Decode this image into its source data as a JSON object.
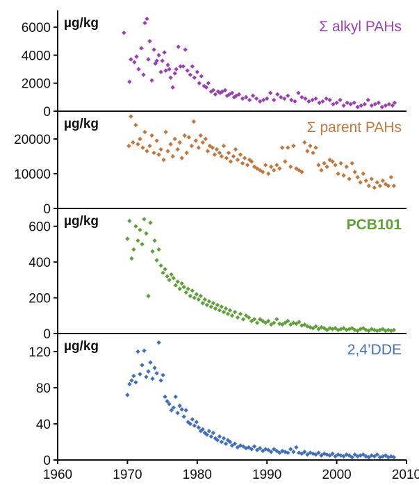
{
  "chart_data": [
    {
      "type": "scatter",
      "ylabel": "µg/kg",
      "ylim": [
        0,
        7200
      ],
      "yticks": [
        0,
        2000,
        4000,
        6000
      ],
      "xlim": [
        1960,
        2010
      ],
      "grid": false,
      "series": [
        {
          "name": "Σ alkyl PAHs",
          "color": "#9b3fb5",
          "x": [
            1969.5,
            1970.3,
            1970.5,
            1971.0,
            1971.3,
            1971.6,
            1972.0,
            1972.3,
            1972.5,
            1972.8,
            1973.0,
            1973.2,
            1973.5,
            1973.8,
            1974.0,
            1974.2,
            1974.5,
            1974.8,
            1975.0,
            1975.3,
            1975.5,
            1975.8,
            1976.0,
            1976.2,
            1976.5,
            1976.8,
            1977.0,
            1977.3,
            1977.6,
            1978.0,
            1978.3,
            1978.6,
            1979.0,
            1979.3,
            1979.6,
            1980.0,
            1980.3,
            1980.6,
            1981.0,
            1981.3,
            1981.6,
            1982.0,
            1982.3,
            1982.6,
            1983.0,
            1983.3,
            1983.6,
            1984.0,
            1984.3,
            1984.6,
            1985.0,
            1985.3,
            1985.6,
            1986.0,
            1986.5,
            1987.0,
            1987.5,
            1988.0,
            1988.5,
            1989.0,
            1989.5,
            1990.0,
            1990.5,
            1991.0,
            1991.5,
            1992.0,
            1992.5,
            1993.0,
            1993.5,
            1994.0,
            1994.5,
            1995.0,
            1995.5,
            1996.0,
            1996.5,
            1997.0,
            1997.5,
            1998.0,
            1998.5,
            1999.0,
            1999.5,
            2000.0,
            2000.5,
            2001.0,
            2001.5,
            2002.0,
            2002.5,
            2003.0,
            2003.5,
            2004.0,
            2004.5,
            2005.0,
            2005.5,
            2006.0,
            2006.5,
            2007.0,
            2007.5,
            2008.0,
            2008.3
          ],
          "y": [
            5600,
            2100,
            3700,
            3500,
            3900,
            3000,
            4500,
            2600,
            6300,
            6600,
            3700,
            5000,
            2200,
            4400,
            3400,
            3600,
            4000,
            2800,
            3600,
            4200,
            2900,
            3300,
            3000,
            2400,
            1700,
            2700,
            3000,
            4600,
            3200,
            3200,
            4400,
            2900,
            2600,
            3200,
            2400,
            2800,
            2000,
            2500,
            1800,
            1700,
            2000,
            1400,
            1500,
            1200,
            1400,
            1300,
            1400,
            1500,
            1100,
            1200,
            1300,
            1000,
            1100,
            1200,
            900,
            1000,
            800,
            1100,
            900,
            700,
            800,
            900,
            1300,
            800,
            1200,
            1000,
            900,
            1100,
            800,
            700,
            1300,
            1000,
            900,
            700,
            800,
            900,
            600,
            700,
            900,
            800,
            500,
            600,
            800,
            400,
            600,
            500,
            600,
            300,
            400,
            500,
            800,
            400,
            500,
            600,
            300,
            400,
            500,
            400,
            600
          ]
        }
      ]
    },
    {
      "type": "scatter",
      "ylabel": "µg/kg",
      "ylim": [
        0,
        28000
      ],
      "yticks": [
        0,
        10000,
        20000
      ],
      "xlim": [
        1960,
        2010
      ],
      "grid": false,
      "series": [
        {
          "name": "Σ parent PAHs",
          "color": "#c4773a",
          "x": [
            1970.2,
            1970.5,
            1970.8,
            1971.2,
            1971.5,
            1971.8,
            1972.2,
            1972.5,
            1972.8,
            1973.2,
            1973.5,
            1973.8,
            1974.2,
            1974.5,
            1974.8,
            1975.2,
            1975.5,
            1975.8,
            1976.2,
            1976.5,
            1976.8,
            1977.2,
            1977.5,
            1977.8,
            1978.2,
            1978.5,
            1978.8,
            1979.2,
            1979.5,
            1979.8,
            1980.2,
            1980.5,
            1980.8,
            1981.2,
            1981.5,
            1981.8,
            1982.2,
            1982.5,
            1982.8,
            1983.2,
            1983.5,
            1983.8,
            1984.2,
            1984.5,
            1984.8,
            1985.2,
            1985.5,
            1985.8,
            1986.2,
            1986.5,
            1986.8,
            1987.2,
            1987.5,
            1987.8,
            1988.2,
            1988.6,
            1989.0,
            1989.4,
            1989.8,
            1990.2,
            1990.6,
            1991.0,
            1991.4,
            1991.8,
            1992.2,
            1992.6,
            1993.0,
            1993.4,
            1993.8,
            1994.2,
            1994.6,
            1995.0,
            1995.4,
            1995.8,
            1996.2,
            1996.6,
            1997.0,
            1997.4,
            1997.8,
            1998.2,
            1998.6,
            1999.0,
            1999.4,
            1999.8,
            2000.2,
            2000.6,
            2001.0,
            2001.4,
            2001.8,
            2002.2,
            2002.6,
            2003.0,
            2003.4,
            2003.8,
            2004.2,
            2004.6,
            2005.0,
            2005.4,
            2005.8,
            2006.2,
            2006.6,
            2007.0,
            2007.4,
            2007.8,
            2008.2
          ],
          "y": [
            18000,
            26500,
            19000,
            24000,
            18500,
            20000,
            17500,
            22000,
            16500,
            18000,
            21000,
            16000,
            19500,
            15500,
            17000,
            14000,
            22000,
            16500,
            18500,
            15000,
            20000,
            17000,
            19000,
            14500,
            21000,
            16000,
            20500,
            18000,
            25000,
            19500,
            17500,
            21000,
            19000,
            20000,
            16500,
            18000,
            17500,
            15500,
            17000,
            16000,
            15000,
            18000,
            14500,
            16000,
            13500,
            15000,
            17000,
            14000,
            15500,
            13000,
            14500,
            12500,
            14000,
            13500,
            12000,
            11500,
            11000,
            10500,
            12500,
            10000,
            12000,
            11000,
            12500,
            11500,
            17500,
            13500,
            17500,
            12000,
            18000,
            11500,
            11000,
            10500,
            19000,
            16500,
            18000,
            16000,
            17500,
            12500,
            11000,
            13000,
            12000,
            14000,
            13500,
            12500,
            10000,
            13000,
            9500,
            12000,
            8500,
            13000,
            10500,
            9000,
            7500,
            10000,
            8000,
            6500,
            8500,
            6000,
            7500,
            6500,
            8000,
            7000,
            6500,
            9000,
            6500
          ]
        }
      ]
    },
    {
      "type": "scatter",
      "ylabel": "µg/kg",
      "ylim": [
        0,
        700
      ],
      "yticks": [
        0,
        200,
        400,
        600
      ],
      "xlim": [
        1960,
        2010
      ],
      "grid": false,
      "series": [
        {
          "name": "PCB101",
          "color": "#5ea136",
          "x": [
            1970.0,
            1970.3,
            1970.6,
            1970.9,
            1971.2,
            1971.5,
            1971.8,
            1972.1,
            1972.4,
            1972.7,
            1973.0,
            1973.3,
            1973.6,
            1973.9,
            1974.2,
            1974.5,
            1974.8,
            1975.1,
            1975.4,
            1975.7,
            1976.0,
            1976.3,
            1976.6,
            1976.9,
            1977.2,
            1977.5,
            1977.8,
            1978.1,
            1978.4,
            1978.7,
            1979.0,
            1979.3,
            1979.6,
            1979.9,
            1980.2,
            1980.5,
            1980.8,
            1981.1,
            1981.4,
            1981.7,
            1982.0,
            1982.3,
            1982.6,
            1982.9,
            1983.2,
            1983.5,
            1983.8,
            1984.1,
            1984.4,
            1984.7,
            1985.0,
            1985.4,
            1985.8,
            1986.2,
            1986.6,
            1987.0,
            1987.4,
            1987.8,
            1988.2,
            1988.6,
            1989.0,
            1989.4,
            1989.8,
            1990.2,
            1990.6,
            1991.0,
            1991.4,
            1991.8,
            1992.2,
            1992.6,
            1993.0,
            1993.4,
            1993.8,
            1994.2,
            1994.6,
            1995.0,
            1995.4,
            1995.8,
            1996.2,
            1996.6,
            1997.0,
            1997.4,
            1997.8,
            1998.2,
            1998.6,
            1999.0,
            1999.4,
            1999.8,
            2000.2,
            2000.6,
            2001.0,
            2001.4,
            2001.8,
            2002.2,
            2002.6,
            2003.0,
            2003.4,
            2003.8,
            2004.2,
            2004.6,
            2005.0,
            2005.4,
            2005.8,
            2006.2,
            2006.6,
            2007.0,
            2007.4,
            2007.8,
            2008.2
          ],
          "y": [
            530,
            630,
            420,
            470,
            600,
            520,
            580,
            500,
            640,
            560,
            210,
            620,
            460,
            520,
            410,
            470,
            380,
            340,
            360,
            320,
            300,
            330,
            310,
            270,
            290,
            250,
            280,
            260,
            230,
            250,
            210,
            240,
            200,
            220,
            190,
            210,
            170,
            190,
            160,
            180,
            150,
            170,
            140,
            160,
            130,
            150,
            120,
            140,
            110,
            130,
            100,
            120,
            90,
            110,
            80,
            100,
            90,
            70,
            80,
            60,
            80,
            70,
            60,
            70,
            50,
            60,
            80,
            55,
            50,
            60,
            70,
            50,
            60,
            55,
            65,
            45,
            50,
            40,
            35,
            30,
            40,
            25,
            35,
            30,
            20,
            30,
            25,
            30,
            20,
            25,
            30,
            20,
            25,
            30,
            20,
            15,
            25,
            30,
            20,
            15,
            25,
            20,
            15,
            20,
            25,
            15,
            20,
            15,
            20
          ]
        }
      ]
    },
    {
      "type": "scatter",
      "ylabel": "µg/kg",
      "ylim": [
        0,
        140
      ],
      "yticks": [
        0,
        40,
        80,
        120
      ],
      "xlim": [
        1960,
        2010
      ],
      "xticks": [
        1960,
        1970,
        1980,
        1990,
        2000,
        2010
      ],
      "grid": false,
      "series": [
        {
          "name": "2,4’DDE",
          "color": "#3f6fbf",
          "x": [
            1970.0,
            1970.3,
            1970.6,
            1970.9,
            1971.2,
            1971.5,
            1971.8,
            1972.1,
            1972.4,
            1972.7,
            1973.0,
            1973.3,
            1973.6,
            1973.9,
            1974.2,
            1974.5,
            1974.8,
            1975.1,
            1975.4,
            1975.7,
            1976.0,
            1976.3,
            1976.6,
            1976.9,
            1977.2,
            1977.5,
            1977.8,
            1978.1,
            1978.4,
            1978.7,
            1979.0,
            1979.3,
            1979.6,
            1979.9,
            1980.2,
            1980.5,
            1980.8,
            1981.1,
            1981.4,
            1981.7,
            1982.0,
            1982.3,
            1982.6,
            1982.9,
            1983.2,
            1983.5,
            1983.8,
            1984.1,
            1984.4,
            1984.7,
            1985.0,
            1985.4,
            1985.8,
            1986.2,
            1986.6,
            1987.0,
            1987.4,
            1987.8,
            1988.2,
            1988.6,
            1989.0,
            1989.4,
            1989.8,
            1990.2,
            1990.6,
            1991.0,
            1991.4,
            1991.8,
            1992.2,
            1992.6,
            1993.0,
            1993.4,
            1993.8,
            1994.2,
            1994.6,
            1995.0,
            1995.4,
            1995.8,
            1996.2,
            1996.6,
            1997.0,
            1997.4,
            1997.8,
            1998.2,
            1998.6,
            1999.0,
            1999.4,
            1999.8,
            2000.2,
            2000.6,
            2001.0,
            2001.4,
            2001.8,
            2002.2,
            2002.6,
            2003.0,
            2003.4,
            2003.8,
            2004.2,
            2004.6,
            2005.0,
            2005.4,
            2005.8,
            2006.2,
            2006.6,
            2007.0,
            2007.4,
            2007.8,
            2008.2
          ],
          "y": [
            72,
            84,
            88,
            93,
            86,
            120,
            95,
            105,
            121,
            92,
            98,
            108,
            90,
            102,
            96,
            130,
            88,
            94,
            70,
            65,
            62,
            55,
            58,
            70,
            52,
            60,
            56,
            48,
            55,
            42,
            40,
            45,
            38,
            42,
            36,
            32,
            34,
            30,
            28,
            32,
            26,
            30,
            24,
            22,
            26,
            20,
            24,
            18,
            22,
            20,
            16,
            18,
            14,
            16,
            15,
            13,
            14,
            12,
            15,
            11,
            13,
            10,
            12,
            11,
            9,
            12,
            10,
            8,
            10,
            9,
            8,
            12,
            9,
            14,
            8,
            7,
            9,
            6,
            8,
            7,
            6,
            8,
            5,
            7,
            6,
            5,
            7,
            4,
            6,
            5,
            4,
            6,
            5,
            3,
            6,
            4,
            5,
            6,
            4,
            3,
            5,
            4,
            6,
            3,
            4,
            5,
            3,
            4,
            3
          ]
        }
      ]
    }
  ]
}
